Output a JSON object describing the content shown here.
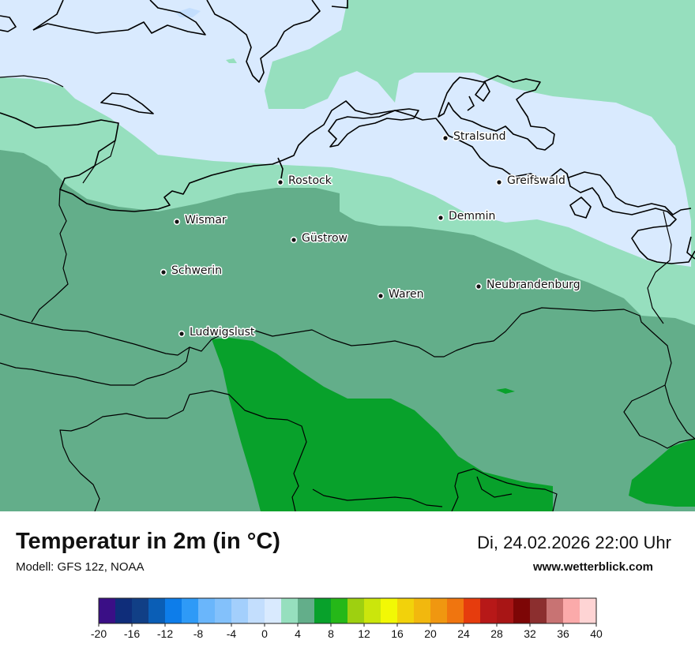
{
  "map": {
    "colors": {
      "c0_2": "#d9eafe",
      "c2_4": "#96dfbe",
      "c4_6": "#63ae8a",
      "c6_8": "#08a12b"
    },
    "cities": [
      {
        "id": "rostock",
        "name": "Rostock"
      },
      {
        "id": "stralsund",
        "name": "Stralsund"
      },
      {
        "id": "greifswald",
        "name": "Greifswald"
      },
      {
        "id": "wismar",
        "name": "Wismar"
      },
      {
        "id": "demmin",
        "name": "Demmin"
      },
      {
        "id": "guestrow",
        "name": "Güstrow"
      },
      {
        "id": "schwerin",
        "name": "Schwerin"
      },
      {
        "id": "neubrandenburg",
        "name": "Neubrandenburg"
      },
      {
        "id": "waren",
        "name": "Waren"
      },
      {
        "id": "ludwigslust",
        "name": "Ludwigslust"
      }
    ]
  },
  "footer": {
    "title": "Temperatur in 2m (in °C)",
    "model": "Modell: GFS 12z, NOAA",
    "datetime": "Di, 24.02.2026 22:00 Uhr",
    "site": "www.wetterblick.com"
  },
  "scale": {
    "colors": [
      "#3a0f86",
      "#0f2d7a",
      "#113f86",
      "#0a5eb6",
      "#0d7dea",
      "#2e9af7",
      "#6ab6fb",
      "#83c1fb",
      "#a3cffc",
      "#c3defd",
      "#d9eafe",
      "#96dfbe",
      "#63ae8a",
      "#08a12b",
      "#25b818",
      "#9ed010",
      "#cbe60c",
      "#f2f805",
      "#f2d20b",
      "#f2b80e",
      "#f09710",
      "#f0750f",
      "#e63c0d",
      "#b71818",
      "#a81515",
      "#7d0606",
      "#8c2f2f",
      "#c87373",
      "#fbaaaa",
      "#fed4d4"
    ],
    "labels": [
      "-20",
      "-16",
      "-12",
      "-8",
      "-4",
      "0",
      "4",
      "8",
      "12",
      "16",
      "20",
      "24",
      "28",
      "32",
      "36",
      "40"
    ]
  }
}
